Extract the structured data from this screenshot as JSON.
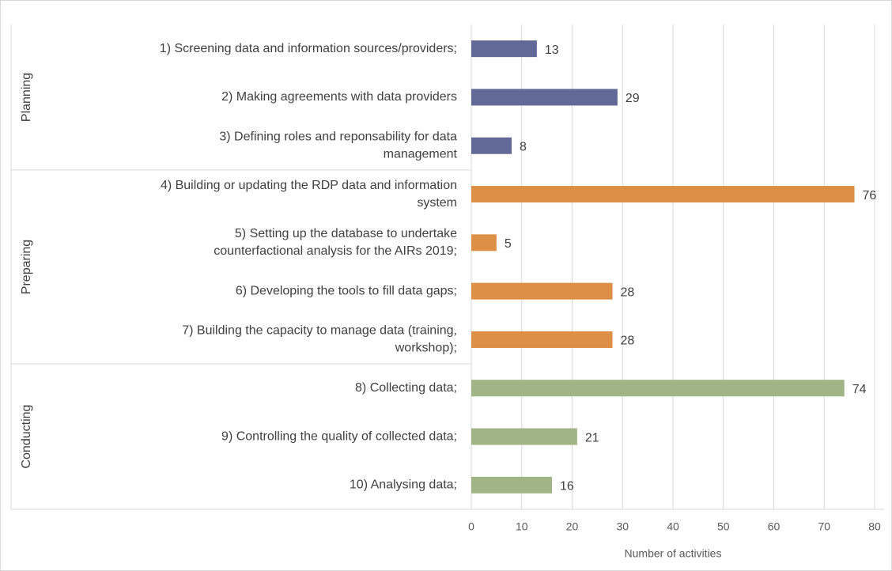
{
  "chart_data": {
    "type": "bar",
    "orientation": "horizontal",
    "x_label": "Number of activities",
    "xlim": [
      0,
      80
    ],
    "xticks": [
      0,
      10,
      20,
      30,
      40,
      50,
      60,
      70,
      80
    ],
    "grid": true,
    "groups": [
      {
        "name": "Planning",
        "color": "#636996",
        "categories": [
          [
            "1) Screening data and information sources/providers;"
          ],
          [
            "2) Making agreements with data providers"
          ],
          [
            "3) Defining roles and reponsability for data",
            "management"
          ]
        ],
        "values": [
          13,
          29,
          8
        ]
      },
      {
        "name": "Preparing",
        "color": "#dd8f45",
        "categories": [
          [
            "4) Building or updating the RDP data and information",
            "system"
          ],
          [
            "5) Setting up the database to undertake",
            "counterfactional analysis for the AIRs 2019;"
          ],
          [
            "6) Developing the tools to fill data gaps;"
          ],
          [
            "7) Building the capacity to manage data (training,",
            "workshop);"
          ]
        ],
        "values": [
          76,
          5,
          28,
          28
        ]
      },
      {
        "name": "Conducting",
        "color": "#a0b486",
        "categories": [
          [
            "8) Collecting data;"
          ],
          [
            "9) Controlling the quality of collected data;"
          ],
          [
            "10) Analysing data;"
          ]
        ],
        "values": [
          74,
          21,
          16
        ]
      }
    ]
  }
}
